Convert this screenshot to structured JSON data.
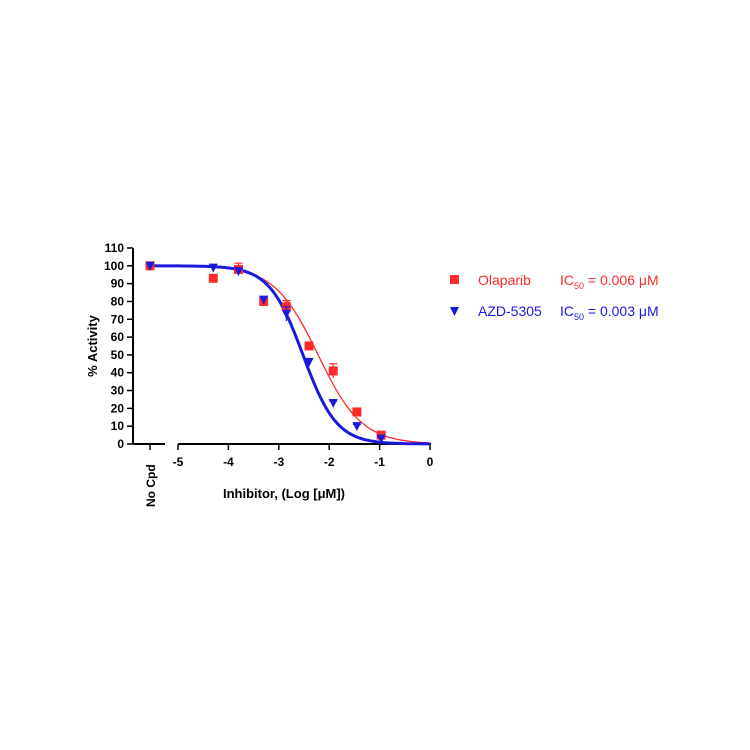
{
  "chart_data": {
    "type": "scatter",
    "xlabel": "Inhibitor, (Log [μM])",
    "ylabel": "% Activity",
    "xlim": [
      -5,
      0
    ],
    "ylim": [
      0,
      110
    ],
    "x_ticks": [
      "-5",
      "-4",
      "-3",
      "-2",
      "-1",
      "0"
    ],
    "y_ticks": [
      "0",
      "10",
      "20",
      "30",
      "40",
      "50",
      "60",
      "70",
      "80",
      "90",
      "100",
      "110"
    ],
    "control_label": "No Cpd",
    "control_value": 100,
    "series": [
      {
        "name": "Olaparib",
        "ic50_label": "IC",
        "ic50_sub": "50",
        "ic50_value": " = 0.006 μM",
        "color": "#ff2a2a",
        "marker": "square",
        "ic50_log": -2.22,
        "hill": 1.0,
        "points": [
          {
            "x": -4.3,
            "y": 93,
            "err": 1.5
          },
          {
            "x": -3.8,
            "y": 98,
            "err": 3.5
          },
          {
            "x": -3.3,
            "y": 80,
            "err": 2
          },
          {
            "x": -2.85,
            "y": 77,
            "err": 3.5
          },
          {
            "x": -2.4,
            "y": 55,
            "err": 2
          },
          {
            "x": -1.92,
            "y": 41,
            "err": 4
          },
          {
            "x": -1.45,
            "y": 18,
            "err": 1
          },
          {
            "x": -0.97,
            "y": 5,
            "err": 1
          }
        ]
      },
      {
        "name": "AZD-5305",
        "ic50_label": "IC",
        "ic50_sub": "50",
        "ic50_value": " = 0.003 μM",
        "color": "#1a1adc",
        "marker": "triangle-down",
        "ic50_log": -2.52,
        "hill": 1.3,
        "points": [
          {
            "x": -4.3,
            "y": 99,
            "err": 0.5
          },
          {
            "x": -3.8,
            "y": 97,
            "err": 1.5
          },
          {
            "x": -3.3,
            "y": 81,
            "err": 1.5
          },
          {
            "x": -2.85,
            "y": 73,
            "err": 4
          },
          {
            "x": -2.4,
            "y": 46,
            "err": 2
          },
          {
            "x": -1.92,
            "y": 23,
            "err": 1
          },
          {
            "x": -1.45,
            "y": 10,
            "err": 1
          },
          {
            "x": -0.97,
            "y": 3,
            "err": 1
          }
        ]
      }
    ],
    "legend_position": "right"
  }
}
